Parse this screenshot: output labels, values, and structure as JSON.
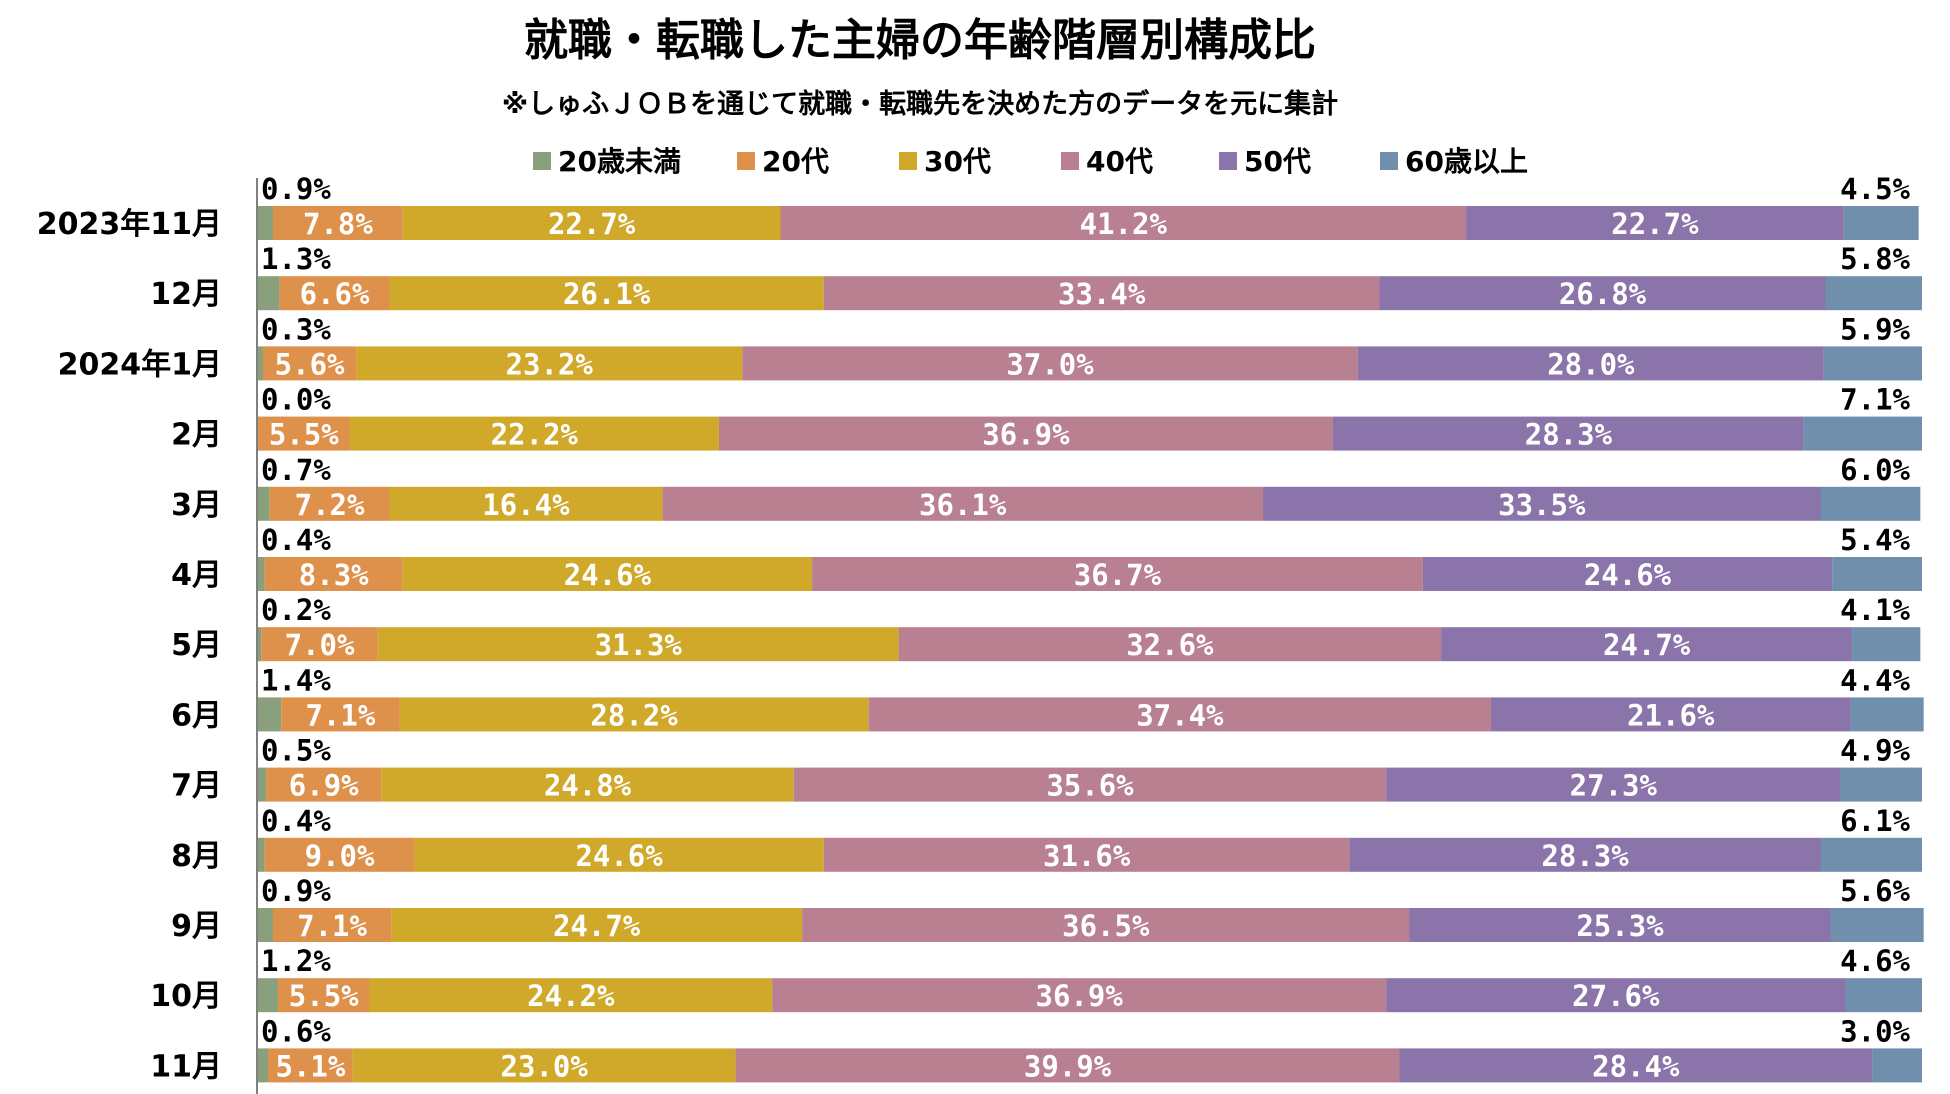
{
  "chart_data": {
    "type": "bar",
    "orientation": "horizontal",
    "stacked": true,
    "title": "就職・転職した主婦の年齢階層別構成比",
    "subtitle": "※しゅふＪＯＢを通じて就職・転職先を決めた方のデータを元に集計",
    "legend_position": "top",
    "grid": false,
    "xlim": [
      0,
      100
    ],
    "categories": [
      "2023年11月",
      "12月",
      "2024年1月",
      "2月",
      "3月",
      "4月",
      "5月",
      "6月",
      "7月",
      "8月",
      "9月",
      "10月",
      "11月"
    ],
    "series": [
      {
        "name": "20歳未満",
        "color": "#8a9f7b",
        "values": [
          0.9,
          1.3,
          0.3,
          0.0,
          0.7,
          0.4,
          0.2,
          1.4,
          0.5,
          0.4,
          0.9,
          1.2,
          0.6
        ],
        "labels": [
          "0.9%",
          "1.3%",
          "0.3%",
          "0.0%",
          "0.7%",
          "0.4%",
          "0.2%",
          "1.4%",
          "0.5%",
          "0.4%",
          "0.9%",
          "1.2%",
          "0.6%"
        ]
      },
      {
        "name": "20代",
        "color": "#de914a",
        "values": [
          7.8,
          6.6,
          5.6,
          5.5,
          7.2,
          8.3,
          7.0,
          7.1,
          6.9,
          9.0,
          7.1,
          5.5,
          5.1
        ],
        "labels": [
          "7.8%",
          "6.6%",
          "5.6%",
          "5.5%",
          "7.2%",
          "8.3%",
          "7.0%",
          "7.1%",
          "6.9%",
          "9.0%",
          "7.1%",
          "5.5%",
          "5.1%"
        ]
      },
      {
        "name": "30代",
        "color": "#d0a82a",
        "values": [
          22.7,
          26.1,
          23.2,
          22.2,
          16.4,
          24.6,
          31.3,
          28.2,
          24.8,
          24.6,
          24.7,
          24.2,
          23.0
        ],
        "labels": [
          "22.7%",
          "26.1%",
          "23.2%",
          "22.2%",
          "16.4%",
          "24.6%",
          "31.3%",
          "28.2%",
          "24.8%",
          "24.6%",
          "24.7%",
          "24.2%",
          "23.0%"
        ]
      },
      {
        "name": "40代",
        "color": "#b88090",
        "values": [
          41.2,
          33.4,
          37.0,
          36.9,
          36.1,
          36.7,
          32.6,
          37.4,
          35.6,
          31.6,
          36.5,
          36.9,
          39.9
        ],
        "labels": [
          "41.2%",
          "33.4%",
          "37.0%",
          "36.9%",
          "36.1%",
          "36.7%",
          "32.6%",
          "37.4%",
          "35.6%",
          "31.6%",
          "36.5%",
          "36.9%",
          "39.9%"
        ]
      },
      {
        "name": "50代",
        "color": "#8a74a9",
        "values": [
          22.7,
          26.8,
          28.0,
          28.3,
          33.5,
          24.6,
          24.7,
          21.6,
          27.3,
          28.3,
          25.3,
          27.6,
          28.4
        ],
        "labels": [
          "22.7%",
          "26.8%",
          "28.0%",
          "28.3%",
          "33.5%",
          "24.6%",
          "24.7%",
          "21.6%",
          "27.3%",
          "28.3%",
          "25.3%",
          "27.6%",
          "28.4%"
        ]
      },
      {
        "name": "60歳以上",
        "color": "#6f8fad",
        "values": [
          4.5,
          5.8,
          5.9,
          7.1,
          6.0,
          5.4,
          4.1,
          4.4,
          4.9,
          6.1,
          5.6,
          4.6,
          3.0
        ],
        "labels": [
          "4.5%",
          "5.8%",
          "5.9%",
          "7.1%",
          "6.0%",
          "5.4%",
          "4.1%",
          "4.4%",
          "4.9%",
          "6.1%",
          "5.6%",
          "4.6%",
          "3.0%"
        ]
      }
    ]
  }
}
